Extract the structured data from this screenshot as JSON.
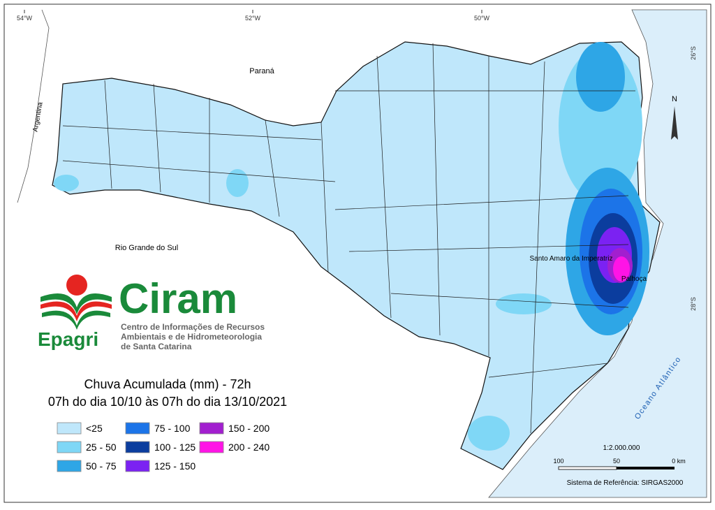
{
  "map": {
    "grid_labels": {
      "lon": [
        "54°W",
        "52°W",
        "50°W"
      ],
      "lat": [
        "26°S",
        "28°S"
      ]
    },
    "places": {
      "parana": "Paraná",
      "argentina": "Argentina",
      "rio_grande_do_sul": "Rio Grande do Sul",
      "santo_amaro": "Santo Amaro da Imperatriz",
      "palhoca": "Palhoça",
      "ocean": "Oceano Atlântico"
    },
    "north": "N"
  },
  "logo": {
    "ciram": "Ciram",
    "epagri": "Epagri",
    "description": [
      "Centro de Informações de Recursos",
      "Ambientais e de Hidrometeorologia",
      "de Santa Catarina"
    ]
  },
  "title": [
    "Chuva Acumulada (mm) - 72h",
    "07h do dia 10/10 às 07h do dia 13/10/2021"
  ],
  "legend": {
    "items": [
      {
        "label": "<25",
        "color": "#bfe7fb"
      },
      {
        "label": "25 - 50",
        "color": "#7fd7f6"
      },
      {
        "label": "50 - 75",
        "color": "#2ea6e6"
      },
      {
        "label": "75 - 100",
        "color": "#1c74e8"
      },
      {
        "label": "100 - 125",
        "color": "#0b3d9e"
      },
      {
        "label": "125 - 150",
        "color": "#7b22f2"
      },
      {
        "label": "150 - 200",
        "color": "#a21fcf"
      },
      {
        "label": "200 - 240",
        "color": "#ff14e6"
      }
    ]
  },
  "scale": {
    "ratio": "1:2.000.000",
    "labels": [
      "100",
      "50",
      "0 km"
    ]
  },
  "reference": "Sistema de Referência: SIRGAS2000"
}
